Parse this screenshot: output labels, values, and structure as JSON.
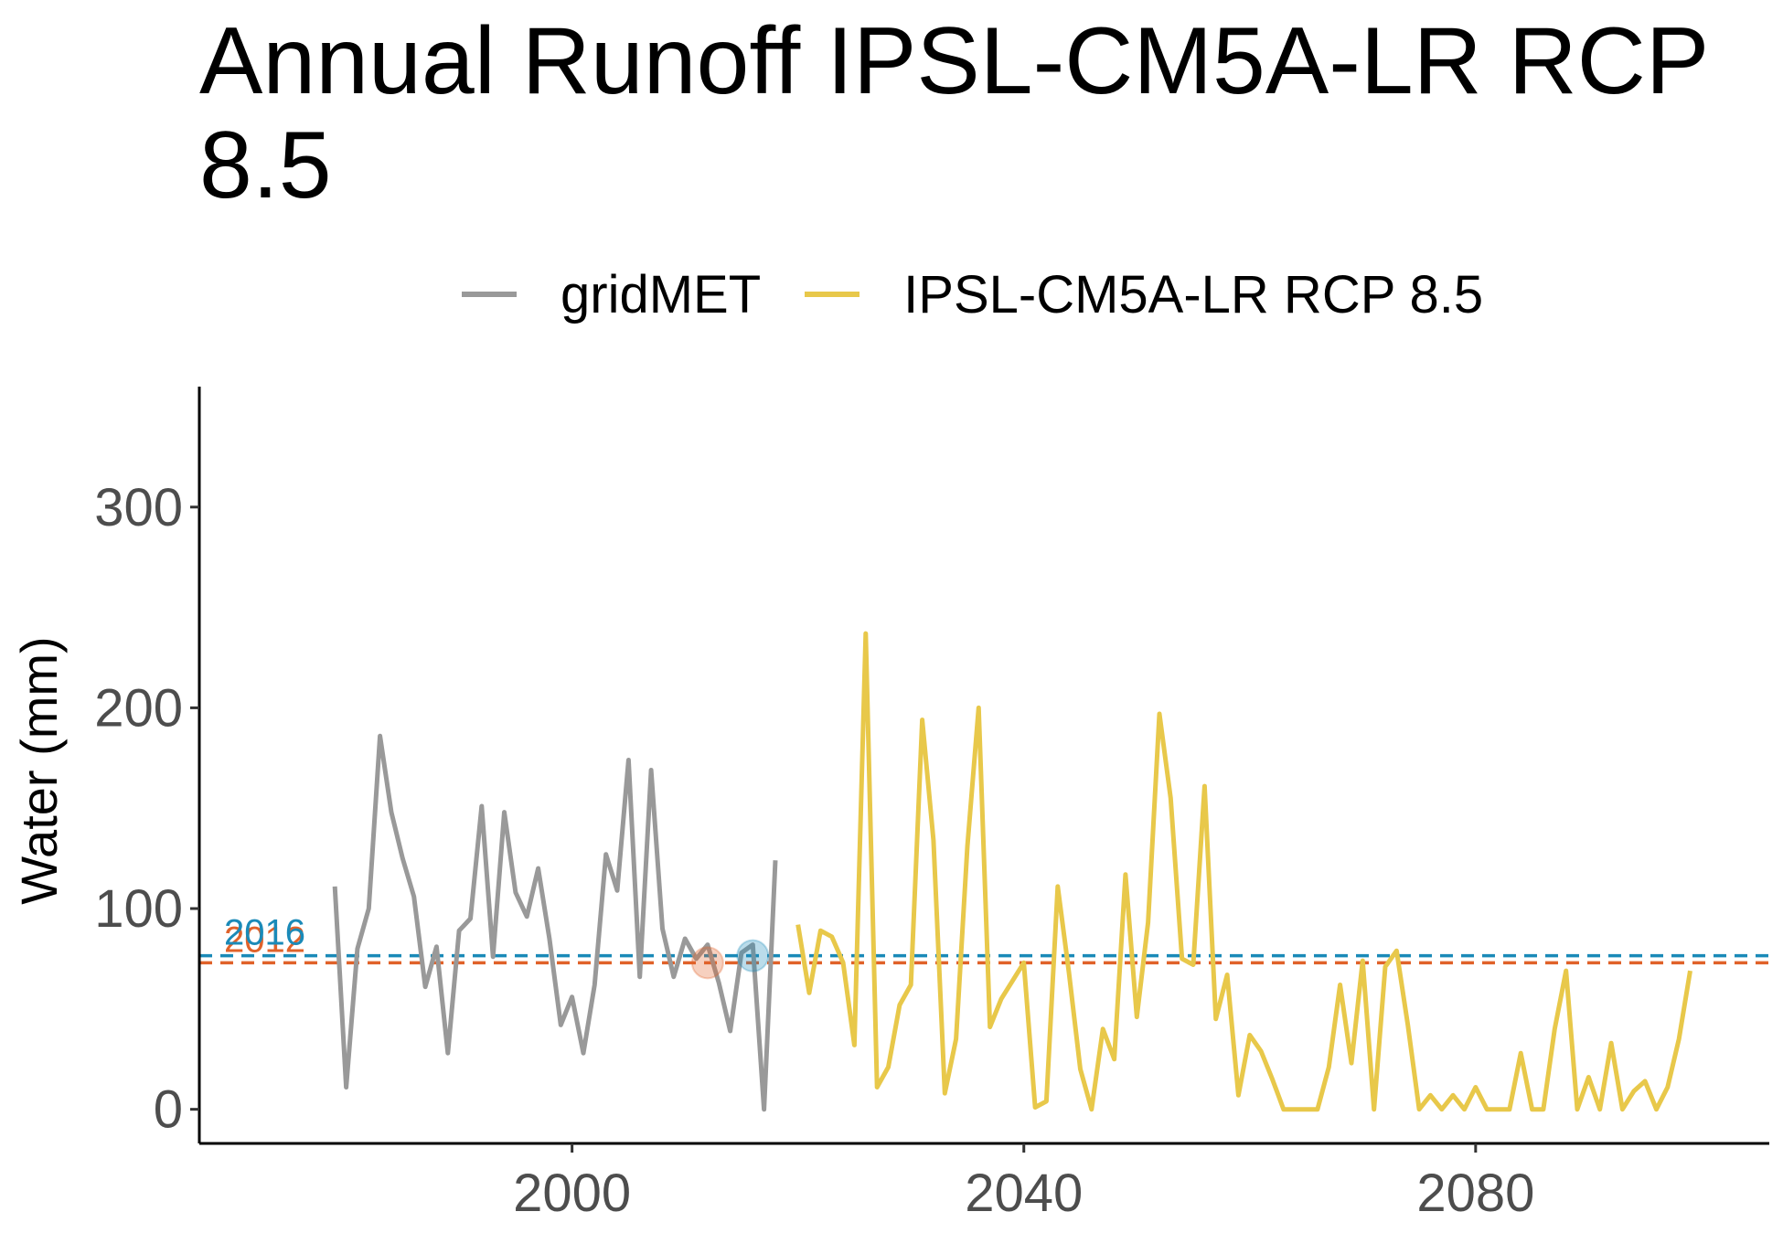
{
  "chart_data": {
    "type": "line",
    "title": "Annual Runoff IPSL-CM5A-LR RCP 8.5",
    "xlabel": "",
    "ylabel": "Water (mm)",
    "xlim": [
      1967,
      2106
    ],
    "ylim": [
      -17,
      360
    ],
    "xticks": [
      2000,
      2040,
      2080
    ],
    "yticks": [
      0,
      100,
      200,
      300
    ],
    "grid": false,
    "legend_position": "top",
    "series": [
      {
        "name": "gridMET",
        "color": "#999999",
        "x": [
          1979,
          1980,
          1981,
          1982,
          1983,
          1984,
          1985,
          1986,
          1987,
          1988,
          1989,
          1990,
          1991,
          1992,
          1993,
          1994,
          1995,
          1996,
          1997,
          1998,
          1999,
          2000,
          2001,
          2002,
          2003,
          2004,
          2005,
          2006,
          2007,
          2008,
          2009,
          2010,
          2011,
          2012,
          2013,
          2014,
          2015,
          2016,
          2017,
          2018,
          2019
        ],
        "y": [
          111,
          11,
          80,
          100,
          186,
          148,
          125,
          106,
          61,
          81,
          28,
          89,
          95,
          151,
          76,
          148,
          108,
          96,
          120,
          85,
          42,
          56,
          28,
          62,
          127,
          109,
          174,
          66,
          169,
          90,
          66,
          85,
          75,
          82,
          63,
          39,
          78,
          82,
          0,
          124,
          null
        ]
      },
      {
        "name": "IPSL-CM5A-LR RCP 8.5",
        "color": "#e8c84a",
        "x": [
          2020,
          2021,
          2022,
          2023,
          2024,
          2025,
          2026,
          2027,
          2028,
          2029,
          2030,
          2031,
          2032,
          2033,
          2034,
          2035,
          2036,
          2037,
          2038,
          2039,
          2040,
          2041,
          2042,
          2043,
          2044,
          2045,
          2046,
          2047,
          2048,
          2049,
          2050,
          2051,
          2052,
          2053,
          2054,
          2055,
          2056,
          2057,
          2058,
          2059,
          2060,
          2061,
          2062,
          2063,
          2064,
          2065,
          2066,
          2067,
          2068,
          2069,
          2070,
          2071,
          2072,
          2073,
          2074,
          2075,
          2076,
          2077,
          2078,
          2079,
          2080,
          2081,
          2082,
          2083,
          2084,
          2085,
          2086,
          2087,
          2088,
          2089,
          2090,
          2091,
          2092,
          2093,
          2094,
          2095,
          2096,
          2097,
          2098,
          2099,
          2100
        ],
        "y": [
          92,
          58,
          89,
          86,
          73,
          32,
          237,
          11,
          21,
          52,
          62,
          194,
          134,
          8,
          35,
          131,
          200,
          41,
          55,
          64,
          73,
          1,
          4,
          111,
          68,
          20,
          0,
          40,
          25,
          117,
          46,
          93,
          197,
          155,
          75,
          72,
          161,
          45,
          67,
          7,
          37,
          29,
          15,
          0,
          0,
          0,
          0,
          21,
          62,
          23,
          74,
          0,
          71,
          79,
          42,
          0,
          7,
          0,
          7,
          0,
          11,
          0,
          0,
          0,
          28,
          0,
          0,
          40,
          69,
          0,
          16,
          0,
          33,
          0,
          9,
          14,
          0,
          11,
          35,
          69,
          null
        ]
      }
    ],
    "reference_lines": [
      {
        "y": 73,
        "color": "#e0622a",
        "style": "dashed",
        "label": "2012",
        "marker_x": 2012
      },
      {
        "y": 76.5,
        "color": "#1a8ab8",
        "style": "dashed",
        "label": "2016",
        "marker_x": 2016
      }
    ]
  }
}
